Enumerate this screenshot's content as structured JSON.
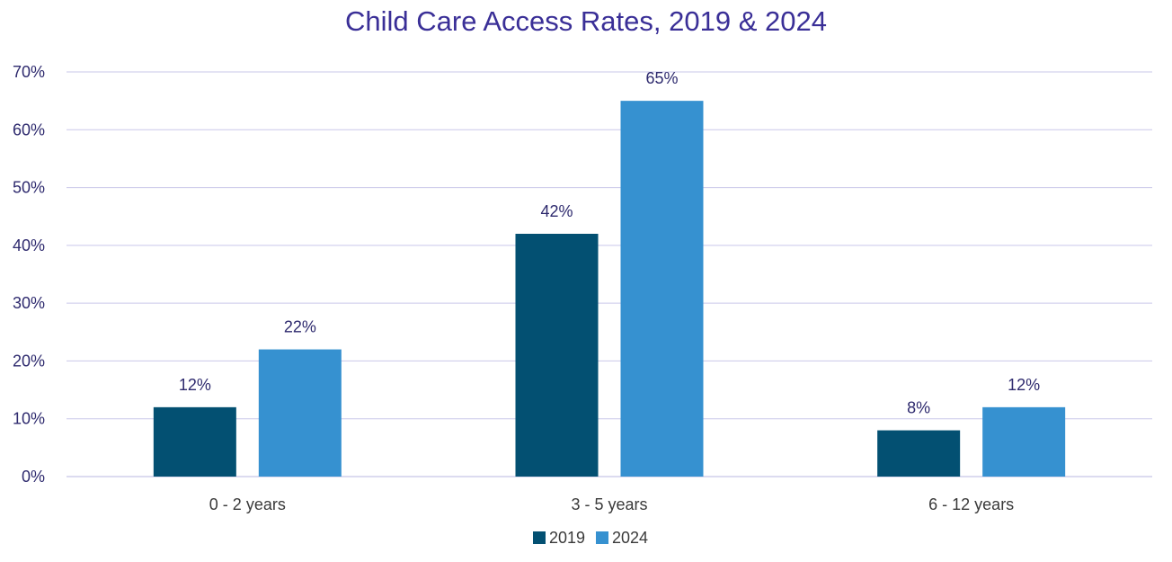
{
  "chart_data": {
    "type": "bar",
    "title": "Child Care Access Rates, 2019 & 2024",
    "categories": [
      "0 - 2 years",
      "3 - 5 years",
      "6 - 12 years"
    ],
    "series": [
      {
        "name": "2019",
        "values": [
          12,
          42,
          8
        ],
        "labels": [
          "12%",
          "42%",
          "8%"
        ],
        "color": "#035072"
      },
      {
        "name": "2024",
        "values": [
          22,
          65,
          12
        ],
        "labels": [
          "22%",
          "65%",
          "12%"
        ],
        "color": "#3691d0"
      }
    ],
    "ylim": [
      0,
      70
    ],
    "yticks": [
      0,
      10,
      20,
      30,
      40,
      50,
      60,
      70
    ],
    "ytick_labels": [
      "0%",
      "10%",
      "20%",
      "30%",
      "40%",
      "50%",
      "60%",
      "70%"
    ],
    "grid": true,
    "legend_position": "bottom",
    "colors": {
      "title": "#3a2f97",
      "gridline": "#c9c7ea",
      "axis": "#b9b7e0",
      "label": "#2e2a6e"
    }
  }
}
